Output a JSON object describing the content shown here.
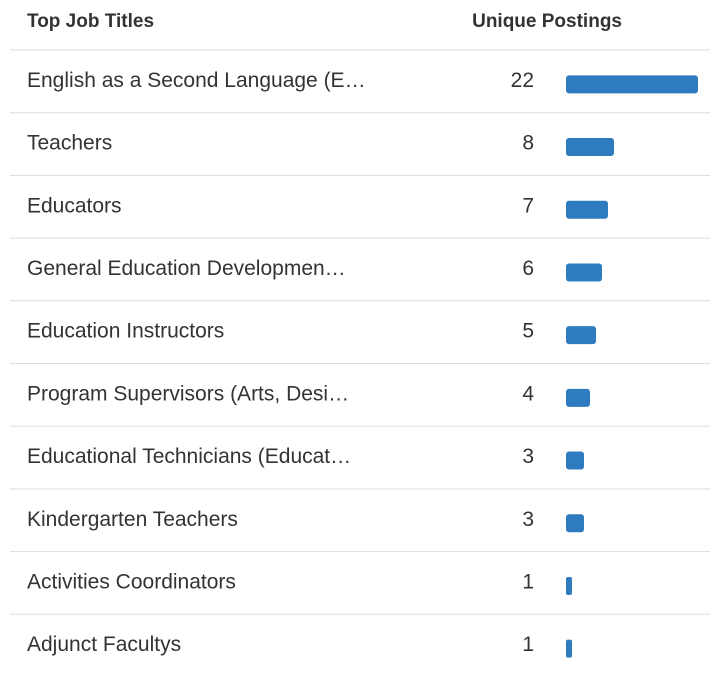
{
  "chart_data": {
    "type": "bar",
    "columns": [
      "Top Job Titles",
      "Unique Postings"
    ],
    "categories": [
      "English as a Second Language (E…",
      "Teachers",
      "Educators",
      "General Education Developmen…",
      "Education Instructors",
      "Program Supervisors (Arts, Desi…",
      "Educational Technicians (Educat…",
      "Kindergarten Teachers",
      "Activities Coordinators",
      "Adjunct Facultys"
    ],
    "values": [
      22,
      8,
      7,
      6,
      5,
      4,
      3,
      3,
      1,
      1
    ],
    "color": "#2f7bbf"
  }
}
